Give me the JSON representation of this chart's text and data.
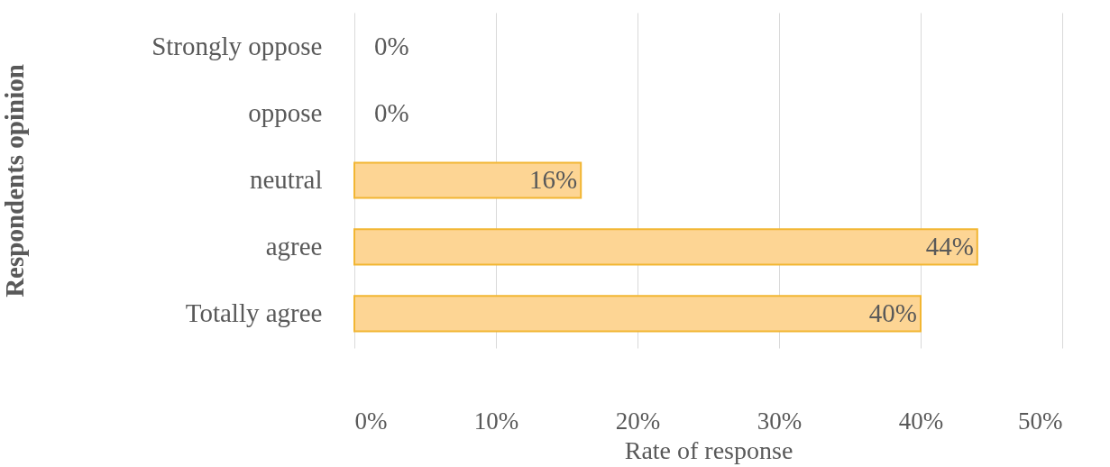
{
  "chart_data": {
    "type": "bar",
    "orientation": "horizontal",
    "ylabel": "Respondents opinion",
    "xlabel": "Rate of response",
    "categories": [
      "Strongly oppose",
      "oppose",
      "neutral",
      "agree",
      "Totally agree"
    ],
    "values": [
      0,
      0,
      16,
      44,
      40
    ],
    "value_labels": [
      "0%",
      "0%",
      "16%",
      "44%",
      "40%"
    ],
    "color": "#fdd594",
    "xlim": [
      0,
      50
    ],
    "xticks": [
      {
        "value": 0,
        "label": "0%"
      },
      {
        "value": 10,
        "label": "10%"
      },
      {
        "value": 20,
        "label": "20%"
      },
      {
        "value": 30,
        "label": "30%"
      },
      {
        "value": 40,
        "label": "40%"
      },
      {
        "value": 50,
        "label": "50%"
      }
    ],
    "grid": "x"
  }
}
